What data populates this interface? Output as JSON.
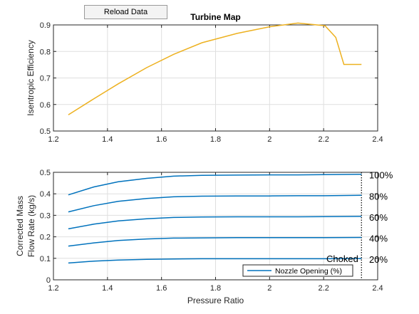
{
  "controls": {
    "reload_label": "Reload Data"
  },
  "colors": {
    "efficiency_line": "#EDB120",
    "flow_line": "#0072BD",
    "axis": "#262626",
    "grid": "#dfdfdf",
    "choke_line": "#000000"
  },
  "chart_data": [
    {
      "type": "line",
      "title": "Turbine Map",
      "xlabel": "",
      "ylabel": "Isentropic Efficiency",
      "xlim": [
        1.2,
        2.4
      ],
      "ylim": [
        0.5,
        0.9
      ],
      "xticks": [
        "1.2",
        "1.4",
        "1.6",
        "1.8",
        "2",
        "2.2",
        "2.4"
      ],
      "yticks": [
        "0.5",
        "0.6",
        "0.7",
        "0.8",
        "0.9"
      ],
      "grid": true,
      "series": [
        {
          "x": [
            1.255,
            1.35,
            1.44,
            1.545,
            1.645,
            1.75,
            1.88,
            2.0,
            2.105,
            2.205,
            2.245,
            2.275,
            2.34
          ],
          "y": [
            0.561,
            0.622,
            0.678,
            0.739,
            0.789,
            0.833,
            0.868,
            0.893,
            0.907,
            0.897,
            0.853,
            0.751,
            0.751
          ]
        }
      ]
    },
    {
      "type": "line",
      "title": "",
      "xlabel": "Pressure Ratio",
      "ylabel": "Corrected Mass Flow Rate (kg/s)",
      "ylabel_lines": [
        "Corrected Mass",
        "Flow Rate (kg/s)"
      ],
      "xlim": [
        1.2,
        2.4
      ],
      "ylim": [
        0,
        0.5
      ],
      "xticks": [
        "1.2",
        "1.4",
        "1.6",
        "1.8",
        "2",
        "2.2",
        "2.4"
      ],
      "yticks": [
        "0",
        "0.1",
        "0.2",
        "0.3",
        "0.4",
        "0.5"
      ],
      "grid": true,
      "legend": {
        "position": "bottom-right",
        "entries": [
          "Nozzle Opening (%)"
        ]
      },
      "annotations": {
        "choked": "Choked",
        "choke_x": 2.34
      },
      "series": [
        {
          "label": "20%",
          "x": [
            1.255,
            1.35,
            1.44,
            1.545,
            1.645,
            1.75,
            1.88,
            2.0,
            2.105,
            2.205,
            2.34
          ],
          "y": [
            0.078,
            0.087,
            0.092,
            0.095,
            0.097,
            0.098,
            0.098,
            0.098,
            0.098,
            0.098,
            0.099
          ]
        },
        {
          "label": "40%",
          "x": [
            1.255,
            1.35,
            1.44,
            1.545,
            1.645,
            1.75,
            1.88,
            2.0,
            2.105,
            2.205,
            2.34
          ],
          "y": [
            0.157,
            0.172,
            0.183,
            0.19,
            0.194,
            0.195,
            0.196,
            0.196,
            0.196,
            0.196,
            0.197
          ]
        },
        {
          "label": "60%",
          "x": [
            1.255,
            1.35,
            1.44,
            1.545,
            1.645,
            1.75,
            1.88,
            2.0,
            2.105,
            2.205,
            2.34
          ],
          "y": [
            0.237,
            0.259,
            0.274,
            0.284,
            0.29,
            0.292,
            0.293,
            0.293,
            0.293,
            0.294,
            0.295
          ]
        },
        {
          "label": "80%",
          "x": [
            1.255,
            1.35,
            1.44,
            1.545,
            1.645,
            1.75,
            1.88,
            2.0,
            2.105,
            2.205,
            2.34
          ],
          "y": [
            0.316,
            0.345,
            0.365,
            0.378,
            0.386,
            0.389,
            0.39,
            0.39,
            0.391,
            0.391,
            0.393
          ]
        },
        {
          "label": "100%",
          "x": [
            1.255,
            1.35,
            1.44,
            1.545,
            1.645,
            1.75,
            1.88,
            2.0,
            2.105,
            2.205,
            2.34
          ],
          "y": [
            0.395,
            0.432,
            0.456,
            0.472,
            0.482,
            0.486,
            0.487,
            0.488,
            0.488,
            0.489,
            0.491
          ]
        }
      ]
    }
  ]
}
